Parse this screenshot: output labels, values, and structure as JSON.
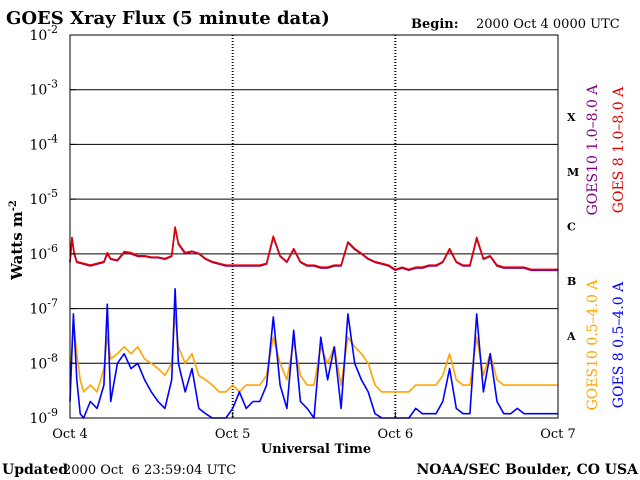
{
  "colors": {
    "goes10_long": "#800080",
    "goes8_long": "#e00000",
    "goes10_short": "#ffa500",
    "goes8_short": "#0000ff",
    "axis": "#000000",
    "background": "#ffffff"
  },
  "chart_data": {
    "type": "line",
    "title": "GOES Xray Flux (5 minute data)",
    "begin_label": "Begin:",
    "begin_value": "2000 Oct 4 0000 UTC",
    "xlabel": "Universal Time",
    "ylabel": "Watts m",
    "ylabel_exponent": "-2",
    "x_ticks": [
      "Oct 4",
      "Oct 5",
      "Oct 6",
      "Oct 7"
    ],
    "xlim": [
      0,
      72
    ],
    "x_unit": "hours since 2000 Oct 4 0000 UTC",
    "ylim": [
      1e-09,
      0.01
    ],
    "yscale": "log",
    "y_ticks": [
      {
        "base": "10",
        "exp": "-2",
        "value": 0.01
      },
      {
        "base": "10",
        "exp": "-3",
        "value": 0.001
      },
      {
        "base": "10",
        "exp": "-4",
        "value": 0.0001
      },
      {
        "base": "10",
        "exp": "-5",
        "value": 1e-05
      },
      {
        "base": "10",
        "exp": "-6",
        "value": 1e-06
      },
      {
        "base": "10",
        "exp": "-7",
        "value": 1e-07
      },
      {
        "base": "10",
        "exp": "-8",
        "value": 1e-08
      },
      {
        "base": "10",
        "exp": "-9",
        "value": 1e-09
      }
    ],
    "flare_classes": [
      {
        "label": "X",
        "value": 0.000316
      },
      {
        "label": "M",
        "value": 3.16e-05
      },
      {
        "label": "C",
        "value": 3.16e-06
      },
      {
        "label": "B",
        "value": 3.16e-07
      },
      {
        "label": "A",
        "value": 3.16e-08
      }
    ],
    "legend": [
      {
        "text": "GOES10 1.0–8.0 A",
        "series": "goes10_long"
      },
      {
        "text": "GOES 8 1.0–8.0 A",
        "series": "goes8_long"
      },
      {
        "text": "GOES10 0.5–4.0 A",
        "series": "goes10_short"
      },
      {
        "text": "GOES 8 0.5–4.0 A",
        "series": "goes8_short"
      }
    ],
    "series": [
      {
        "name": "GOES10 1.0-8.0 A",
        "key": "goes10_long",
        "x": [
          0,
          0.3,
          0.6,
          1,
          2,
          3,
          4,
          5,
          5.5,
          6,
          7,
          8,
          9,
          10,
          11,
          12,
          13,
          14,
          15,
          15.5,
          16,
          17,
          18,
          19,
          20,
          21,
          22,
          23,
          24,
          25,
          26,
          27,
          28,
          29,
          30,
          31,
          32,
          33,
          34,
          35,
          36,
          37,
          38,
          39,
          40,
          41,
          42,
          43,
          44,
          45,
          46,
          47,
          48,
          49,
          50,
          51,
          52,
          53,
          54,
          55,
          56,
          57,
          58,
          59,
          60,
          61,
          62,
          63,
          64,
          65,
          66,
          67,
          68,
          69,
          70,
          71,
          72
        ],
        "y": [
          7e-07,
          1.9e-06,
          1e-06,
          7e-07,
          6.5e-07,
          6e-07,
          6.5e-07,
          7e-07,
          1e-06,
          8e-07,
          7.5e-07,
          1.05e-06,
          1e-06,
          9e-07,
          9e-07,
          8.5e-07,
          8.5e-07,
          8e-07,
          9e-07,
          3e-06,
          1.5e-06,
          1e-06,
          1.1e-06,
          1e-06,
          8e-07,
          7e-07,
          6.5e-07,
          6e-07,
          6e-07,
          6e-07,
          6e-07,
          6e-07,
          6e-07,
          6.5e-07,
          2e-06,
          9e-07,
          7e-07,
          1.2e-06,
          7e-07,
          6e-07,
          6e-07,
          5.5e-07,
          5.5e-07,
          6e-07,
          6e-07,
          1.6e-06,
          1.2e-06,
          1e-06,
          8e-07,
          7e-07,
          6.5e-07,
          6e-07,
          5e-07,
          5.5e-07,
          5e-07,
          5.5e-07,
          5.5e-07,
          6e-07,
          6e-07,
          7e-07,
          1.2e-06,
          7e-07,
          6e-07,
          6e-07,
          1.9e-06,
          8e-07,
          9e-07,
          6e-07,
          5.5e-07,
          5.5e-07,
          5.5e-07,
          5.5e-07,
          5e-07,
          5e-07,
          5e-07,
          5e-07,
          5e-07
        ]
      },
      {
        "name": "GOES 8 1.0-8.0 A",
        "key": "goes8_long",
        "x": [
          0,
          0.3,
          0.6,
          1,
          2,
          3,
          4,
          5,
          5.5,
          6,
          7,
          8,
          9,
          10,
          11,
          12,
          13,
          14,
          15,
          15.5,
          16,
          17,
          18,
          19,
          20,
          21,
          22,
          23,
          24,
          25,
          26,
          27,
          28,
          29,
          30,
          31,
          32,
          33,
          34,
          35,
          36,
          37,
          38,
          39,
          40,
          41,
          42,
          43,
          44,
          45,
          46,
          47,
          48,
          49,
          50,
          51,
          52,
          53,
          54,
          55,
          56,
          57,
          58,
          59,
          60,
          61,
          62,
          63,
          64,
          65,
          66,
          67,
          68,
          69,
          70,
          71,
          72
        ],
        "y": [
          7.2e-07,
          2e-06,
          1.05e-06,
          7.2e-07,
          6.7e-07,
          6.2e-07,
          6.7e-07,
          7.2e-07,
          1.05e-06,
          8.2e-07,
          7.7e-07,
          1.1e-06,
          1.05e-06,
          9.2e-07,
          9.2e-07,
          8.7e-07,
          8.7e-07,
          8.2e-07,
          9.2e-07,
          3.1e-06,
          1.55e-06,
          1.05e-06,
          1.12e-06,
          1.02e-06,
          8.2e-07,
          7.2e-07,
          6.7e-07,
          6.2e-07,
          6.2e-07,
          6.2e-07,
          6.2e-07,
          6.2e-07,
          6.2e-07,
          6.7e-07,
          2.1e-06,
          9.2e-07,
          7.2e-07,
          1.25e-06,
          7.2e-07,
          6.2e-07,
          6.2e-07,
          5.7e-07,
          5.7e-07,
          6.2e-07,
          6.2e-07,
          1.65e-06,
          1.25e-06,
          1.02e-06,
          8.2e-07,
          7.2e-07,
          6.7e-07,
          6.2e-07,
          5.2e-07,
          5.7e-07,
          5.2e-07,
          5.7e-07,
          5.7e-07,
          6.2e-07,
          6.2e-07,
          7.2e-07,
          1.25e-06,
          7.2e-07,
          6.2e-07,
          6.2e-07,
          2e-06,
          8.2e-07,
          9.2e-07,
          6.2e-07,
          5.7e-07,
          5.7e-07,
          5.7e-07,
          5.7e-07,
          5.2e-07,
          5.2e-07,
          5.2e-07,
          5.2e-07,
          5.2e-07
        ]
      },
      {
        "name": "GOES10 0.5-4.0 A",
        "key": "goes10_short",
        "x": [
          0,
          0.5,
          1,
          1.5,
          2,
          3,
          4,
          5,
          5.5,
          6,
          7,
          8,
          9,
          10,
          11,
          12,
          13,
          14,
          15,
          15.5,
          16,
          17,
          18,
          19,
          20,
          21,
          22,
          23,
          24,
          25,
          26,
          27,
          28,
          29,
          30,
          31,
          32,
          33,
          34,
          35,
          36,
          37,
          38,
          39,
          40,
          41,
          42,
          43,
          44,
          45,
          46,
          47,
          48,
          49,
          50,
          51,
          52,
          53,
          54,
          55,
          56,
          57,
          58,
          59,
          60,
          61,
          62,
          63,
          64,
          65,
          66,
          67,
          68,
          69,
          70,
          71,
          72
        ],
        "y": [
          4e-09,
          6e-08,
          1.5e-08,
          5e-09,
          3e-09,
          4e-09,
          3e-09,
          8e-09,
          3e-08,
          1.2e-08,
          1.5e-08,
          2e-08,
          1.5e-08,
          2e-08,
          1.2e-08,
          1e-08,
          8e-09,
          6e-09,
          1e-08,
          8e-08,
          2e-08,
          1e-08,
          1.5e-08,
          6e-09,
          5e-09,
          4e-09,
          3e-09,
          3e-09,
          4e-09,
          3e-09,
          4e-09,
          4e-09,
          4e-09,
          6e-09,
          3e-08,
          1e-08,
          5e-09,
          2.5e-08,
          6e-09,
          4e-09,
          4e-09,
          2e-08,
          1e-08,
          2e-08,
          4e-09,
          3e-08,
          2e-08,
          1.5e-08,
          1e-08,
          4e-09,
          3e-09,
          3e-09,
          3e-09,
          3e-09,
          3e-09,
          4e-09,
          4e-09,
          4e-09,
          4e-09,
          6e-09,
          1.5e-08,
          5e-09,
          4e-09,
          4e-09,
          3e-08,
          6e-09,
          1.5e-08,
          5e-09,
          4e-09,
          4e-09,
          4e-09,
          4e-09,
          4e-09,
          4e-09,
          4e-09,
          4e-09,
          4e-09
        ]
      },
      {
        "name": "GOES 8 0.5-4.0 A",
        "key": "goes8_short",
        "x": [
          0,
          0.5,
          1,
          1.5,
          2,
          3,
          4,
          5,
          5.5,
          6,
          7,
          8,
          9,
          10,
          11,
          12,
          13,
          14,
          15,
          15.5,
          16,
          17,
          18,
          19,
          20,
          21,
          22,
          23,
          24,
          25,
          26,
          27,
          28,
          29,
          30,
          31,
          32,
          33,
          34,
          35,
          36,
          37,
          38,
          39,
          40,
          41,
          42,
          43,
          44,
          45,
          46,
          47,
          48,
          49,
          50,
          51,
          52,
          53,
          54,
          55,
          56,
          57,
          58,
          59,
          60,
          61,
          62,
          63,
          64,
          65,
          66,
          67,
          68,
          69,
          70,
          71,
          72
        ],
        "y": [
          2e-09,
          8e-08,
          5e-09,
          1.2e-09,
          1e-09,
          2e-09,
          1.5e-09,
          4e-09,
          1.2e-07,
          2e-09,
          1e-08,
          1.5e-08,
          8e-09,
          1e-08,
          5e-09,
          3e-09,
          2e-09,
          1.5e-09,
          5e-09,
          2.3e-07,
          1e-08,
          3e-09,
          8e-09,
          1.5e-09,
          1.2e-09,
          1e-09,
          1e-09,
          1e-09,
          1.5e-09,
          3e-09,
          1.5e-09,
          2e-09,
          2e-09,
          4e-09,
          7e-08,
          4e-09,
          1.5e-09,
          4e-08,
          2e-09,
          1.5e-09,
          1e-09,
          3e-08,
          5e-09,
          2e-08,
          1.5e-09,
          8e-08,
          1e-08,
          5e-09,
          3e-09,
          1.2e-09,
          1e-09,
          1e-09,
          1e-09,
          1e-09,
          1e-09,
          1.5e-09,
          1.2e-09,
          1.2e-09,
          1.2e-09,
          2e-09,
          8e-09,
          1.5e-09,
          1.2e-09,
          1.2e-09,
          8e-08,
          3e-09,
          1.5e-08,
          2e-09,
          1.2e-09,
          1.2e-09,
          1.5e-09,
          1.2e-09,
          1.2e-09,
          1.2e-09,
          1.2e-09,
          1.2e-09,
          1.2e-09
        ]
      }
    ]
  },
  "footer": {
    "updated_label": "Updated",
    "updated_value": "2000 Oct  6 23:59:04 UTC",
    "source": "NOAA/SEC Boulder, CO USA"
  }
}
